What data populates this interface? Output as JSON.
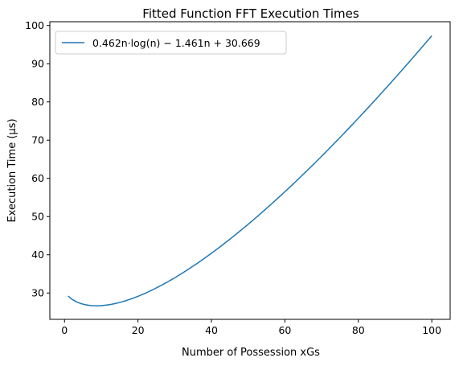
{
  "chart_data": {
    "type": "line",
    "title": "Fitted Function FFT Execution Times",
    "xlabel": "Number of Possession xGs",
    "ylabel": "Execution Time (μs)",
    "xlim": [
      -4.0,
      105.0
    ],
    "ylim": [
      23.1,
      101.0
    ],
    "xticks": [
      0,
      20,
      40,
      60,
      80,
      100
    ],
    "yticks": [
      30,
      40,
      50,
      60,
      70,
      80,
      90,
      100
    ],
    "grid": false,
    "legend_position": "top-left",
    "series": [
      {
        "name": "0.462n·log(n) − 1.461n + 30.669",
        "color": "#1f77b4",
        "a": 0.462,
        "b": -1.461,
        "c": 30.669,
        "x_range": [
          1,
          100
        ]
      }
    ]
  }
}
